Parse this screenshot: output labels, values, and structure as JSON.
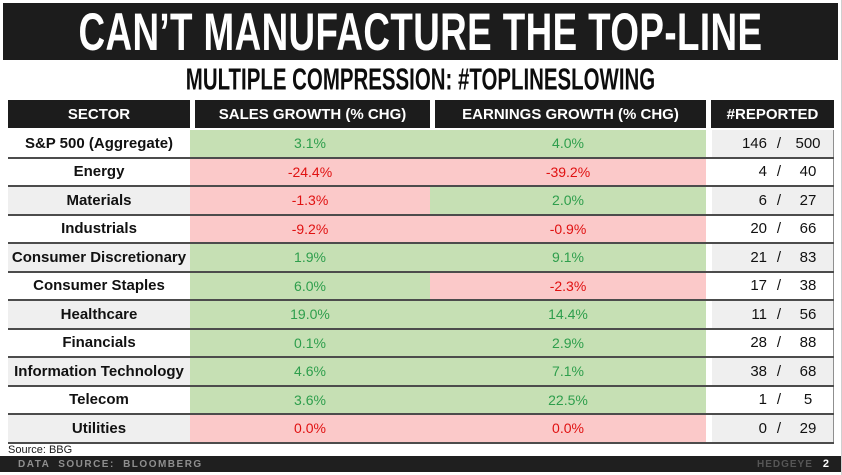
{
  "title": "CAN’T MANUFACTURE THE TOP-LINE",
  "subtitle": "MULTIPLE COMPRESSION: #TOPLINESLOWING",
  "source_note": "Source: BBG",
  "footer": {
    "left": "DATA SOURCE: BLOOMBERG",
    "brand": "HEDGEYE",
    "page_number": "2"
  },
  "colors": {
    "header_bg": "#1c1c1c",
    "footer_bg": "#1f1f1f",
    "stripe_bg": "#efefef",
    "row_border": "#4c4c4c",
    "positive_bg": "#c6e0b4",
    "positive_text": "#2e9e4c",
    "negative_bg": "#fbc9c9",
    "negative_text": "#e01111",
    "footer_text": "#8f8f8f",
    "brand_text": "#565656"
  },
  "chart_data": {
    "type": "table",
    "title": "CAN’T MANUFACTURE THE TOP-LINE",
    "subtitle": "MULTIPLE COMPRESSION: #TOPLINESLOWING",
    "columns": [
      "SECTOR",
      "SALES GROWTH (% CHG)",
      "EARNINGS GROWTH (% CHG)",
      "#REPORTED"
    ],
    "rows": [
      {
        "sector": "S&P 500 (Aggregate)",
        "sales": "3.1%",
        "sales_polarity": "positive",
        "earnings": "4.0%",
        "earnings_polarity": "positive",
        "reported": "146",
        "total": "500",
        "striped": false,
        "reported_striped": true
      },
      {
        "sector": "Energy",
        "sales": "-24.4%",
        "sales_polarity": "negative",
        "earnings": "-39.2%",
        "earnings_polarity": "negative",
        "reported": "4",
        "total": "40",
        "striped": false,
        "reported_striped": false
      },
      {
        "sector": "Materials",
        "sales": "-1.3%",
        "sales_polarity": "negative",
        "earnings": "2.0%",
        "earnings_polarity": "positive",
        "reported": "6",
        "total": "27",
        "striped": true,
        "reported_striped": true
      },
      {
        "sector": "Industrials",
        "sales": "-9.2%",
        "sales_polarity": "negative",
        "earnings": "-0.9%",
        "earnings_polarity": "negative",
        "reported": "20",
        "total": "66",
        "striped": false,
        "reported_striped": false
      },
      {
        "sector": "Consumer Discretionary",
        "sales": "1.9%",
        "sales_polarity": "positive",
        "earnings": "9.1%",
        "earnings_polarity": "positive",
        "reported": "21",
        "total": "83",
        "striped": true,
        "reported_striped": true
      },
      {
        "sector": "Consumer Staples",
        "sales": "6.0%",
        "sales_polarity": "positive",
        "earnings": "-2.3%",
        "earnings_polarity": "negative",
        "reported": "17",
        "total": "38",
        "striped": false,
        "reported_striped": false
      },
      {
        "sector": "Healthcare",
        "sales": "19.0%",
        "sales_polarity": "positive",
        "earnings": "14.4%",
        "earnings_polarity": "positive",
        "reported": "11",
        "total": "56",
        "striped": true,
        "reported_striped": true
      },
      {
        "sector": "Financials",
        "sales": "0.1%",
        "sales_polarity": "positive",
        "earnings": "2.9%",
        "earnings_polarity": "positive",
        "reported": "28",
        "total": "88",
        "striped": false,
        "reported_striped": false
      },
      {
        "sector": "Information Technology",
        "sales": "4.6%",
        "sales_polarity": "positive",
        "earnings": "7.1%",
        "earnings_polarity": "positive",
        "reported": "38",
        "total": "68",
        "striped": true,
        "reported_striped": true
      },
      {
        "sector": "Telecom",
        "sales": "3.6%",
        "sales_polarity": "positive",
        "earnings": "22.5%",
        "earnings_polarity": "positive",
        "reported": "1",
        "total": "5",
        "striped": false,
        "reported_striped": false
      },
      {
        "sector": "Utilities",
        "sales": "0.0%",
        "sales_polarity": "negative",
        "earnings": "0.0%",
        "earnings_polarity": "negative",
        "reported": "0",
        "total": "29",
        "striped": true,
        "reported_striped": true
      }
    ]
  }
}
